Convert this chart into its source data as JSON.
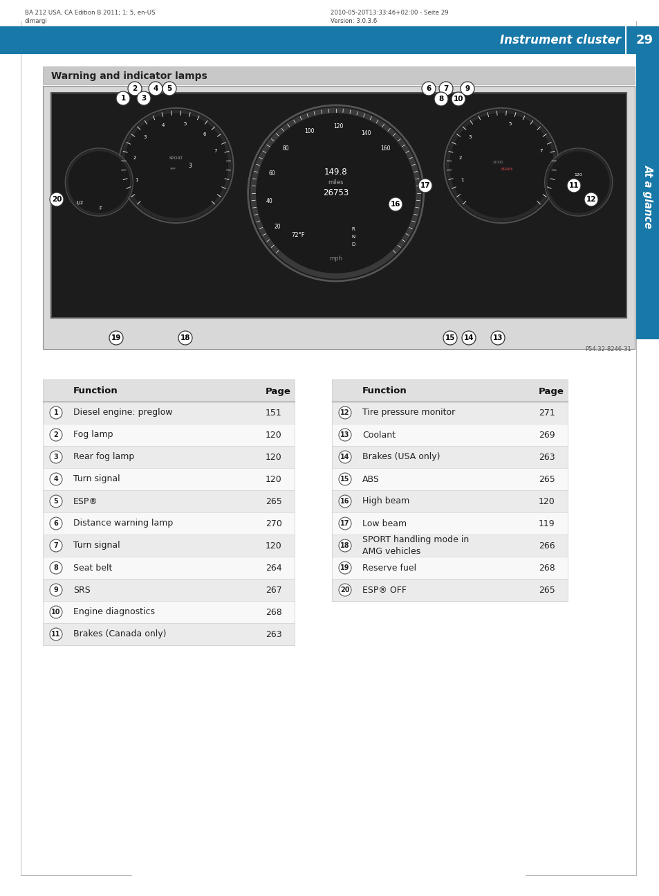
{
  "page_bg": "#ffffff",
  "header_bg": "#1878a8",
  "header_left_line1": "BA 212 USA, CA Edition B 2011; 1; 5, en-US",
  "header_left_line2": "dimargi",
  "header_right_line1": "2010-05-20T13:33:46+02:00 - Seite 29",
  "header_right_line2": "Version: 3.0.3.6",
  "header_title": "Instrument cluster",
  "header_page": "29",
  "side_tab_text": "At a glance",
  "side_tab_bg": "#1878a8",
  "section_title": "Warning and indicator lamps",
  "section_title_bg": "#c8c8c8",
  "image_ref": "P54.32-8246-31",
  "table_rows_left": [
    [
      "1",
      "Diesel engine: preglow",
      "151"
    ],
    [
      "2",
      "Fog lamp",
      "120"
    ],
    [
      "3",
      "Rear fog lamp",
      "120"
    ],
    [
      "4",
      "Turn signal",
      "120"
    ],
    [
      "5",
      "ESP®",
      "265"
    ],
    [
      "6",
      "Distance warning lamp",
      "270"
    ],
    [
      "7",
      "Turn signal",
      "120"
    ],
    [
      "8",
      "Seat belt",
      "264"
    ],
    [
      "9",
      "SRS",
      "267"
    ],
    [
      "10",
      "Engine diagnostics",
      "268"
    ],
    [
      "11",
      "Brakes (Canada only)",
      "263"
    ]
  ],
  "table_rows_right": [
    [
      "12",
      "Tire pressure monitor",
      "271"
    ],
    [
      "13",
      "Coolant",
      "269"
    ],
    [
      "14",
      "Brakes (USA only)",
      "263"
    ],
    [
      "15",
      "ABS",
      "265"
    ],
    [
      "16",
      "High beam",
      "120"
    ],
    [
      "17",
      "Low beam",
      "119"
    ],
    [
      "18",
      "SPORT handling mode in\nAMG vehicles",
      "266"
    ],
    [
      "19",
      "Reserve fuel",
      "268"
    ],
    [
      "20",
      "ESP® OFF",
      "265"
    ]
  ],
  "outer_border_color": "#aaaaaa",
  "table_row_alt_bg": "#ebebeb",
  "table_row_bg": "#f8f8f8",
  "table_border_color": "#cccccc",
  "table_header_bg": "#e0e0e0"
}
